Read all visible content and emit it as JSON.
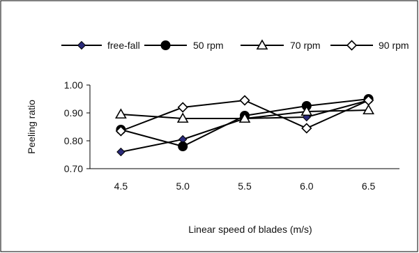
{
  "chart_data": {
    "type": "line",
    "x": [
      4.5,
      5.0,
      5.5,
      6.0,
      6.5
    ],
    "x_tick_labels": [
      "4.5",
      "5.0",
      "5.5",
      "6.0",
      "6.5"
    ],
    "xlabel": "Linear speed of blades (m/s)",
    "ylabel": "Peeling ratio",
    "ylim": [
      0.7,
      1.0
    ],
    "y_ticks": [
      0.7,
      0.8,
      0.9,
      1.0
    ],
    "y_tick_labels": [
      "0.70",
      "0.80",
      "0.90",
      "1.00"
    ],
    "grid": false,
    "legend_position": "top",
    "series": [
      {
        "name": "free-fall",
        "marker": "diamond-filled",
        "values": [
          0.76,
          0.805,
          0.88,
          0.885,
          0.945
        ]
      },
      {
        "name": "50 rpm",
        "marker": "circle-filled",
        "values": [
          0.84,
          0.78,
          0.89,
          0.925,
          0.95
        ]
      },
      {
        "name": "70 rpm",
        "marker": "triangle-open",
        "values": [
          0.895,
          0.88,
          0.88,
          0.905,
          0.91
        ]
      },
      {
        "name": "90 rpm",
        "marker": "diamond-open",
        "values": [
          0.835,
          0.92,
          0.945,
          0.845,
          0.945
        ]
      }
    ],
    "colors": {
      "line": "#000000",
      "diamond_fill": "#2a2a7a",
      "frame": "#000000"
    }
  }
}
